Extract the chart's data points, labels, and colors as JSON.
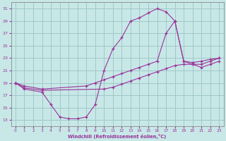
{
  "xlabel": "Windchill (Refroidissement éolien,°C)",
  "xlim": [
    -0.5,
    23.5
  ],
  "ylim": [
    12,
    32
  ],
  "xticks": [
    0,
    1,
    2,
    3,
    4,
    5,
    6,
    7,
    8,
    9,
    10,
    11,
    12,
    13,
    14,
    15,
    16,
    17,
    18,
    19,
    20,
    21,
    22,
    23
  ],
  "yticks": [
    13,
    15,
    17,
    19,
    21,
    23,
    25,
    27,
    29,
    31
  ],
  "bg_color": "#c8e8e8",
  "grid_color": "#a0c8c8",
  "line_color": "#993399",
  "curve1_x": [
    0,
    1,
    3,
    4,
    5,
    6,
    7,
    8,
    9,
    10,
    11,
    12,
    13,
    14,
    15,
    16,
    17,
    18,
    19,
    20,
    21,
    22,
    23
  ],
  "curve1_y": [
    19,
    18,
    17.5,
    15.5,
    13.5,
    13.2,
    13.2,
    13.5,
    15.5,
    21,
    24.5,
    26.3,
    29,
    29.5,
    30.3,
    31,
    30.5,
    29,
    22.5,
    22.3,
    22.5,
    22.8,
    23
  ],
  "curve2_x": [
    0,
    1,
    3,
    8,
    9,
    10,
    11,
    12,
    13,
    14,
    15,
    16,
    17,
    18,
    19,
    20,
    21,
    22,
    23
  ],
  "curve2_y": [
    19,
    18.5,
    18,
    18.5,
    19,
    19.5,
    20,
    20.5,
    21,
    21.5,
    22,
    22.5,
    27,
    29,
    22.5,
    22,
    22,
    22.5,
    23
  ],
  "curve3_x": [
    0,
    1,
    3,
    10,
    11,
    12,
    13,
    14,
    15,
    16,
    17,
    18,
    19,
    20,
    21,
    22,
    23
  ],
  "curve3_y": [
    19,
    18.2,
    17.8,
    18,
    18.3,
    18.8,
    19.3,
    19.8,
    20.3,
    20.8,
    21.3,
    21.8,
    22,
    22,
    21.5,
    22,
    22.5
  ]
}
